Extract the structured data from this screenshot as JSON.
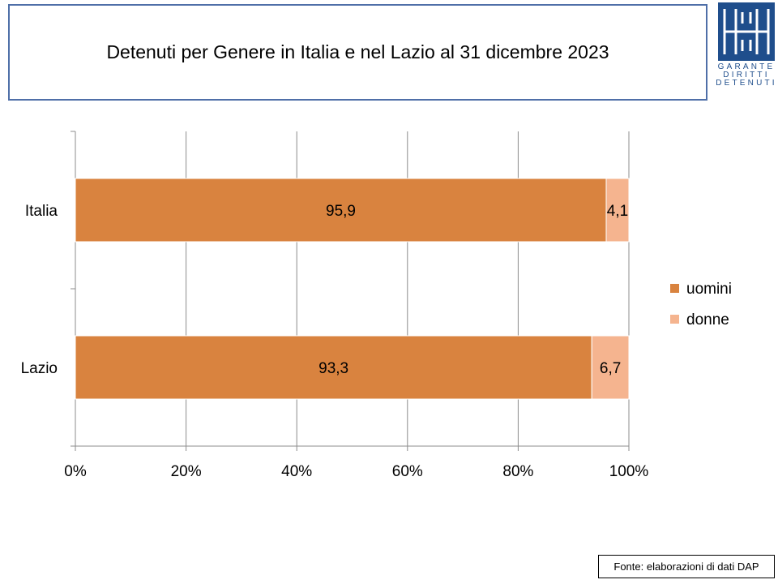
{
  "header": {
    "title": "Detenuti per Genere in Italia e nel Lazio al 31 dicembre 2023"
  },
  "logo": {
    "lines": [
      "GARANTE",
      "DIRITTI",
      "DETENUTI"
    ],
    "color": "#1f4e8c"
  },
  "chart_data": {
    "type": "bar",
    "orientation": "horizontal",
    "stacked": "percent",
    "categories": [
      "Italia",
      "Lazio"
    ],
    "series": [
      {
        "name": "uomini",
        "values": [
          95.9,
          93.3
        ],
        "labels": [
          "95,9",
          "93,3"
        ],
        "color": "#d9833f"
      },
      {
        "name": "donne",
        "values": [
          4.1,
          6.7
        ],
        "labels": [
          "4,1",
          "6,7"
        ],
        "color": "#f5b48f"
      }
    ],
    "xticks": [
      "0%",
      "20%",
      "40%",
      "60%",
      "80%",
      "100%"
    ],
    "xlim": [
      0,
      100
    ],
    "grid": true,
    "legend": "right"
  },
  "footer": {
    "source": "Fonte: elaborazioni di dati DAP"
  }
}
